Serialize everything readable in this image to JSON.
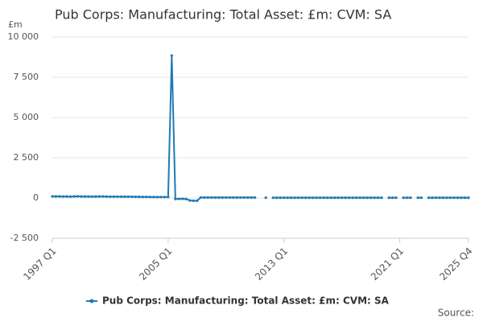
{
  "chart_data": {
    "type": "line",
    "title": "Pub Corps: Manufacturing: Total Asset: £m: CVM: SA",
    "y_label": "£m",
    "source": "Source:",
    "categories": [
      "1997 Q1",
      null,
      null,
      null,
      null,
      null,
      null,
      null,
      null,
      null,
      null,
      null,
      null,
      null,
      null,
      null,
      null,
      null,
      null,
      null,
      null,
      null,
      null,
      null,
      null,
      null,
      null,
      null,
      null,
      null,
      null,
      null,
      "2005 Q1",
      null,
      null,
      null,
      null,
      null,
      null,
      null,
      null,
      null,
      null,
      null,
      null,
      null,
      null,
      null,
      null,
      null,
      null,
      null,
      null,
      null,
      null,
      null,
      null,
      null,
      null,
      null,
      null,
      null,
      null,
      null,
      "2013 Q1",
      null,
      null,
      null,
      null,
      null,
      null,
      null,
      null,
      null,
      null,
      null,
      null,
      null,
      null,
      null,
      null,
      null,
      null,
      null,
      null,
      null,
      null,
      null,
      null,
      null,
      null,
      null,
      null,
      null,
      null,
      null,
      "2021 Q1",
      null,
      null,
      null,
      null,
      null,
      null,
      null,
      null,
      null,
      null,
      null,
      null,
      null,
      null,
      null,
      null,
      null,
      null,
      "2025 Q4"
    ],
    "series": [
      {
        "name": "Pub Corps: Manufacturing: Total Asset: £m: CVM: SA",
        "color": "#1f7ab5",
        "values": [
          100,
          100,
          100,
          95,
          95,
          90,
          100,
          105,
          95,
          95,
          95,
          90,
          95,
          95,
          100,
          90,
          85,
          85,
          85,
          80,
          85,
          80,
          80,
          75,
          75,
          70,
          70,
          65,
          65,
          60,
          60,
          60,
          60,
          8850,
          -60,
          -50,
          -50,
          -60,
          -150,
          -170,
          -170,
          30,
          30,
          30,
          30,
          30,
          30,
          30,
          30,
          30,
          30,
          30,
          30,
          30,
          30,
          30,
          30,
          null,
          null,
          20,
          null,
          20,
          20,
          20,
          20,
          20,
          20,
          20,
          20,
          20,
          20,
          20,
          20,
          20,
          20,
          20,
          20,
          20,
          20,
          20,
          20,
          20,
          20,
          20,
          20,
          20,
          20,
          20,
          20,
          20,
          20,
          20,
          null,
          20,
          20,
          20,
          null,
          20,
          20,
          20,
          null,
          20,
          20,
          null,
          20,
          20,
          20,
          20,
          20,
          20,
          20,
          20,
          20,
          20,
          20,
          20
        ]
      }
    ],
    "ylim": [
      -2500,
      10000
    ],
    "yticks": [
      {
        "value": -2500,
        "label": "-2 500"
      },
      0,
      {
        "value": 2500,
        "label": "2 500"
      },
      {
        "value": 5000,
        "label": "5 000"
      },
      {
        "value": 7500,
        "label": "7 500"
      },
      {
        "value": 10000,
        "label": "10 000"
      }
    ],
    "grid": true
  }
}
